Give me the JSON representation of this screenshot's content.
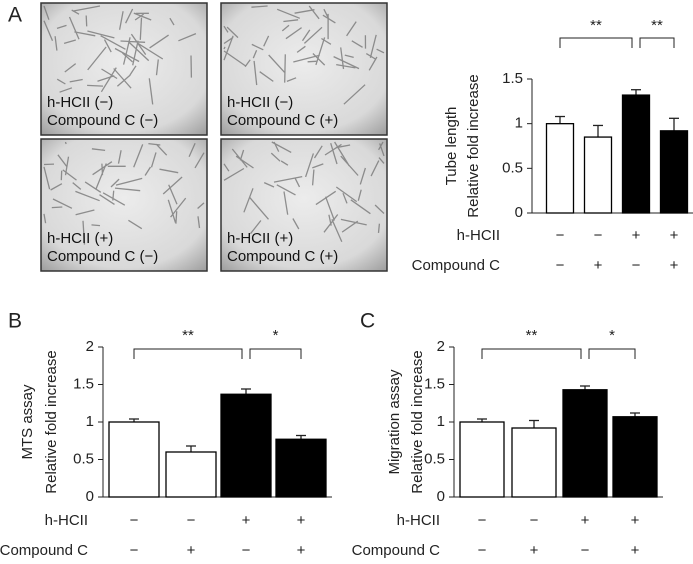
{
  "micrographs": [
    {
      "lines": [
        "h-HCII (−)",
        "Compound C (−)"
      ]
    },
    {
      "lines": [
        "h-HCII (−)",
        "Compound C (+)"
      ]
    },
    {
      "lines": [
        "h-HCII (+)",
        "Compound C (−)"
      ]
    },
    {
      "lines": [
        "h-HCII (+)",
        "Compound C (+)"
      ]
    }
  ],
  "chart_data": [
    {
      "type": "bar",
      "panel": "A",
      "ylabel": [
        "Tube length",
        "Relative fold increase"
      ],
      "values": [
        1.0,
        0.85,
        1.32,
        0.92
      ],
      "errors": [
        0.08,
        0.13,
        0.06,
        0.14
      ],
      "colors": [
        "#ffffff",
        "#ffffff",
        "#000000",
        "#000000"
      ],
      "ylim": [
        0,
        1.5
      ],
      "yticks": [
        0,
        0.5,
        1,
        1.5
      ],
      "conditions": [
        {
          "name": "h-HCII",
          "values": [
            "−",
            "−",
            "+",
            "+"
          ]
        },
        {
          "name": "Compound C",
          "values": [
            "−",
            "+",
            "−",
            "+"
          ]
        }
      ],
      "annotations": [
        "**",
        "**"
      ]
    },
    {
      "type": "bar",
      "panel": "B",
      "ylabel": [
        "MTS assay",
        "Relative fold increase"
      ],
      "values": [
        1.0,
        0.6,
        1.37,
        0.77
      ],
      "errors": [
        0.04,
        0.08,
        0.07,
        0.05
      ],
      "colors": [
        "#ffffff",
        "#ffffff",
        "#000000",
        "#000000"
      ],
      "ylim": [
        0,
        2
      ],
      "yticks": [
        0,
        0.5,
        1,
        1.5,
        2
      ],
      "conditions": [
        {
          "name": "h-HCII",
          "values": [
            "−",
            "−",
            "+",
            "+"
          ]
        },
        {
          "name": "Compound C",
          "values": [
            "−",
            "+",
            "−",
            "+"
          ]
        }
      ],
      "annotations": [
        "**",
        "*"
      ]
    },
    {
      "type": "bar",
      "panel": "C",
      "ylabel": [
        "Migration assay",
        "Relative fold increase"
      ],
      "values": [
        1.0,
        0.92,
        1.43,
        1.07
      ],
      "errors": [
        0.04,
        0.1,
        0.05,
        0.05
      ],
      "colors": [
        "#ffffff",
        "#ffffff",
        "#000000",
        "#000000"
      ],
      "ylim": [
        0,
        2
      ],
      "yticks": [
        0,
        0.5,
        1,
        1.5,
        2
      ],
      "conditions": [
        {
          "name": "h-HCII",
          "values": [
            "−",
            "−",
            "+",
            "+"
          ]
        },
        {
          "name": "Compound C",
          "values": [
            "−",
            "+",
            "−",
            "+"
          ]
        }
      ],
      "annotations": [
        "**",
        "*"
      ]
    }
  ]
}
